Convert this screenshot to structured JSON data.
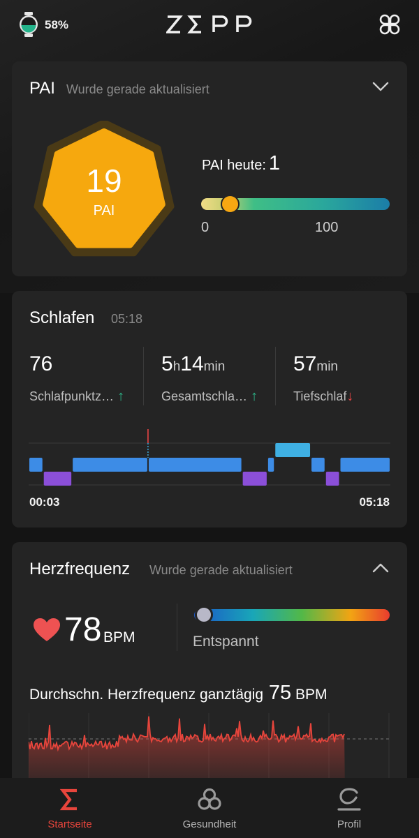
{
  "status": {
    "battery": "58%"
  },
  "header": {
    "logo": "ZEPP"
  },
  "pai": {
    "title": "PAI",
    "subtitle": "Wurde gerade aktualisiert",
    "value": "19",
    "unit": "PAI",
    "today_label": "PAI heute:",
    "today_value": "1",
    "scale_min": "0",
    "scale_max": "100",
    "progress_fraction": 0.19
  },
  "sleep": {
    "title": "Schlafen",
    "time": "05:18",
    "stats": [
      {
        "value": "76",
        "unit": "",
        "label": "Schlafpunktz…",
        "trend": "up"
      },
      {
        "value_h": "5",
        "unit_h": "h",
        "value_m": "14",
        "unit_m": "min",
        "label": "Gesamtschla…",
        "trend": "up"
      },
      {
        "value": "57",
        "unit": "min",
        "label": "Tiefschlaf",
        "trend": "down"
      }
    ],
    "start_time": "00:03",
    "end_time": "05:18",
    "hypnogram": [
      {
        "stage": "light",
        "start": 0.0,
        "end": 0.04
      },
      {
        "stage": "deep",
        "start": 0.04,
        "end": 0.12
      },
      {
        "stage": "light",
        "start": 0.12,
        "end": 0.33
      },
      {
        "stage": "light",
        "start": 0.33,
        "end": 0.59
      },
      {
        "stage": "deep",
        "start": 0.59,
        "end": 0.66
      },
      {
        "stage": "light",
        "start": 0.66,
        "end": 0.68
      },
      {
        "stage": "rem",
        "start": 0.68,
        "end": 0.78
      },
      {
        "stage": "light",
        "start": 0.78,
        "end": 0.82
      },
      {
        "stage": "deep",
        "start": 0.82,
        "end": 0.86
      },
      {
        "stage": "light",
        "start": 0.86,
        "end": 1.0
      }
    ],
    "awake_marker": 0.33,
    "colors": {
      "light": "#3d8ce6",
      "deep": "#8b4fd9",
      "rem": "#3fb0e3",
      "awake": "#e84545"
    }
  },
  "heart_rate": {
    "title": "Herzfrequenz",
    "subtitle": "Wurde gerade aktualisiert",
    "value": "78",
    "unit": "BPM",
    "zone_label": "Entspannt",
    "zone_fraction": 0.05,
    "avg_label": "Durchschn. Herzfrequenz ganztägig",
    "avg_value": "75",
    "avg_unit": "BPM",
    "color": "#e8453c"
  },
  "nav": {
    "items": [
      {
        "label": "Startseite",
        "icon": "sigma-icon",
        "active": true
      },
      {
        "label": "Gesundheit",
        "icon": "health-icon",
        "active": false
      },
      {
        "label": "Profil",
        "icon": "profile-icon",
        "active": false
      }
    ]
  }
}
